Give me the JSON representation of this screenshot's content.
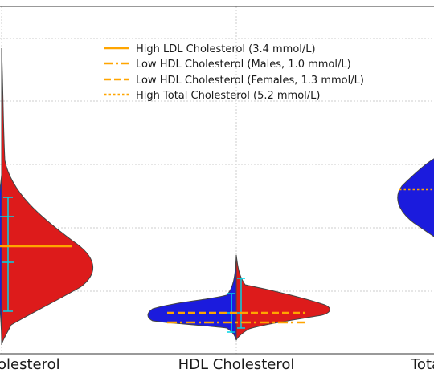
{
  "chart_data": {
    "type": "violin",
    "categories": [
      "LDL Cholesterol",
      "HDL Cholesterol",
      "Total Cholesterol"
    ],
    "visible_tick_labels": [
      "olesterol",
      "HDL Cholesterol",
      "Tota"
    ],
    "split": true,
    "series": [
      {
        "side": "left",
        "color": "#1b1bdd"
      },
      {
        "side": "right",
        "color": "#dd1b1b"
      }
    ],
    "thresholds": [
      {
        "label": "High LDL Cholesterol (3.4 mmol/L)",
        "value": 3.4,
        "style": "solid",
        "category": "LDL Cholesterol"
      },
      {
        "label": "Low HDL Cholesterol (Males, 1.0 mmol/L)",
        "value": 1.0,
        "style": "dashdot",
        "category": "HDL Cholesterol"
      },
      {
        "label": "Low HDL Cholesterol (Females, 1.3 mmol/L)",
        "value": 1.3,
        "style": "dashed",
        "category": "HDL Cholesterol"
      },
      {
        "label": "High Total Cholesterol (5.2 mmol/L)",
        "value": 5.2,
        "style": "dotted",
        "category": "Total Cholesterol"
      }
    ],
    "threshold_color": "#ffa500",
    "whisker_color": "#00d5e6",
    "gridlines": true,
    "legend_position": "top-center"
  }
}
